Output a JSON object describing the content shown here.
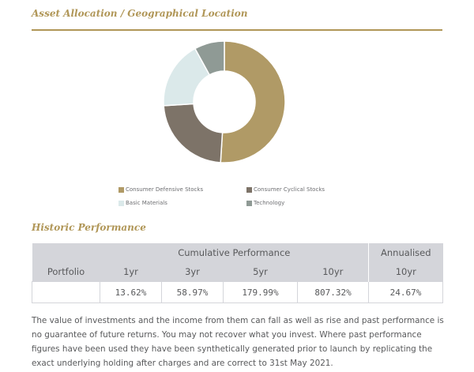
{
  "asset_allocation": {
    "title": "Asset Allocation / Geographical Location",
    "legend": [
      {
        "label": "Consumer Defensive Stocks",
        "color": "#b09a66"
      },
      {
        "label": "Consumer Cyclical Stocks",
        "color": "#7d7368"
      },
      {
        "label": "Basic Materials",
        "color": "#dbe9ea"
      },
      {
        "label": "Technology",
        "color": "#8f9a95"
      }
    ]
  },
  "chart_data": {
    "type": "pie",
    "categories": [
      "Consumer Defensive Stocks",
      "Consumer Cyclical Stocks",
      "Basic Materials",
      "Technology"
    ],
    "values": [
      51,
      23,
      18,
      8
    ],
    "colors": [
      "#b09a66",
      "#7d7368",
      "#dbe9ea",
      "#8f9a95"
    ],
    "legend_position": "bottom"
  },
  "historic_performance": {
    "title": "Historic Performance",
    "cumulative_label": "Cumulative Performance",
    "annualised_label": "Annualised",
    "portfolio_label": "Portfolio",
    "periods": [
      "1yr",
      "3yr",
      "5yr",
      "10yr"
    ],
    "annualised_period": "10yr",
    "values": [
      "13.62%",
      "58.97%",
      "179.99%",
      "807.32%"
    ],
    "annualised_value": "24.67%"
  },
  "disclaimer": "The value of investments and the income from them can fall as well as rise and past performance is no guarantee of future returns. You may not recover what you invest. Where past performance figures have been used they have been synthetically generated prior to launch by replicating the exact underlying holding after charges and are correct to 31st May 2021."
}
